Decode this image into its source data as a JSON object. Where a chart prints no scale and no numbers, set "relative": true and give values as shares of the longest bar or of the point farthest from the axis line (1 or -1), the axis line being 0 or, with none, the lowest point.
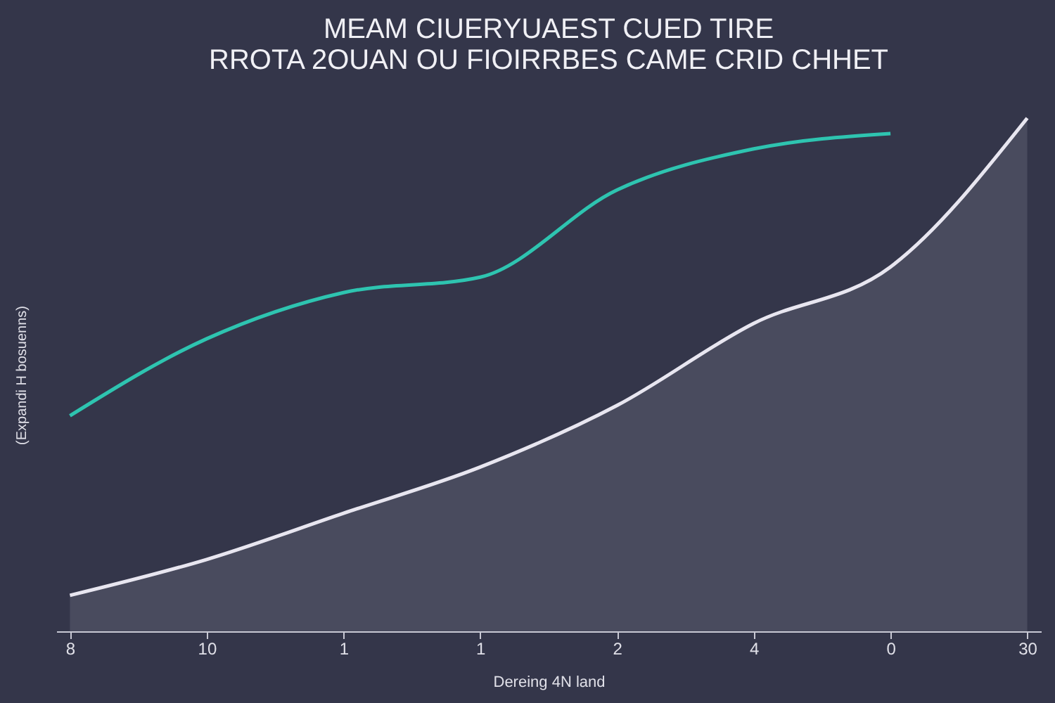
{
  "chart_data": {
    "type": "line",
    "title": [
      "MEAM CIUERYUAEST CUED TIRE",
      "RROTA 2OUAN OU FIOIRRBES CAME CRID CHHET"
    ],
    "xlabel": "Dereing 4N land",
    "ylabel": "(Expandi H bosuenns)",
    "categories": [
      "8",
      "10",
      "1",
      "1",
      "2",
      "4",
      "0",
      "30"
    ],
    "relative": true,
    "series": [
      {
        "color": "#2ec4b0",
        "values": [
          0.42,
          0.57,
          0.66,
          0.69,
          0.86,
          0.94,
          0.97,
          null
        ]
      },
      {
        "type": "area",
        "color": "#e8e6f0",
        "values": [
          0.07,
          0.14,
          0.23,
          0.32,
          0.44,
          0.6,
          0.71,
          1
        ]
      }
    ]
  }
}
